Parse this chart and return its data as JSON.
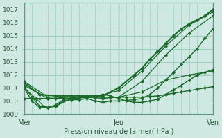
{
  "title": "",
  "xlabel": "Pression niveau de la mer( hPa )",
  "ylabel": "",
  "background_color": "#cfe8e2",
  "grid_color": "#9ecfc5",
  "line_color": "#1a6b2a",
  "text_color": "#2a5a3a",
  "xlim": [
    0,
    48
  ],
  "ylim": [
    1009,
    1017.5
  ],
  "yticks": [
    1009,
    1010,
    1011,
    1012,
    1013,
    1014,
    1015,
    1016,
    1017
  ],
  "xtick_positions": [
    0,
    24,
    48
  ],
  "xtick_labels": [
    "Mer",
    "Jeu",
    "Ven"
  ],
  "series": [
    {
      "x": [
        0,
        2,
        4,
        6,
        8,
        10,
        12,
        14,
        16,
        18,
        20,
        22,
        24,
        26,
        28,
        30,
        32,
        34,
        36,
        38,
        40,
        42,
        44,
        46,
        48
      ],
      "y": [
        1011.1,
        1010.3,
        1009.6,
        1009.5,
        1009.6,
        1010.0,
        1010.1,
        1010.1,
        1010.2,
        1010.0,
        1009.9,
        1010.0,
        1010.0,
        1010.05,
        1010.1,
        1010.2,
        1010.5,
        1011.0,
        1011.6,
        1012.2,
        1012.8,
        1013.4,
        1014.0,
        1014.8,
        1015.5
      ]
    },
    {
      "x": [
        0,
        2,
        4,
        6,
        8,
        10,
        12,
        14,
        16,
        18,
        20,
        22,
        24,
        26,
        28,
        30,
        32,
        34,
        36,
        38,
        40,
        42,
        44,
        46,
        48
      ],
      "y": [
        1010.2,
        1010.2,
        1010.2,
        1010.2,
        1010.2,
        1010.3,
        1010.3,
        1010.3,
        1010.3,
        1010.3,
        1010.3,
        1010.3,
        1010.3,
        1010.3,
        1010.3,
        1010.3,
        1010.35,
        1010.4,
        1010.5,
        1010.6,
        1010.7,
        1010.8,
        1010.9,
        1011.0,
        1011.1
      ]
    },
    {
      "x": [
        0,
        6,
        12,
        18,
        24,
        30,
        36,
        42,
        48
      ],
      "y": [
        1011.5,
        1010.3,
        1010.3,
        1010.3,
        1010.3,
        1011.5,
        1013.5,
        1015.2,
        1016.5
      ]
    },
    {
      "x": [
        0,
        6,
        12,
        18,
        24,
        30,
        36,
        42,
        48
      ],
      "y": [
        1011.2,
        1010.2,
        1010.2,
        1010.3,
        1010.8,
        1012.3,
        1014.2,
        1015.8,
        1016.8
      ]
    },
    {
      "x": [
        0,
        4,
        8,
        12,
        16,
        20,
        24,
        28,
        30,
        32,
        34,
        36,
        38,
        40,
        42,
        44,
        46,
        48
      ],
      "y": [
        1011.4,
        1010.5,
        1010.4,
        1010.4,
        1010.4,
        1010.4,
        1011.0,
        1012.0,
        1012.5,
        1013.2,
        1013.8,
        1014.4,
        1015.0,
        1015.5,
        1015.9,
        1016.2,
        1016.5,
        1017.0
      ]
    },
    {
      "x": [
        0,
        2,
        4,
        6,
        8,
        10,
        12,
        14,
        16,
        18,
        20,
        22,
        24,
        26,
        28,
        30,
        32,
        34,
        36,
        38,
        40,
        42,
        44,
        46,
        48
      ],
      "y": [
        1011.0,
        1010.0,
        1009.5,
        1009.5,
        1009.7,
        1010.1,
        1010.2,
        1010.3,
        1010.4,
        1010.4,
        1010.5,
        1010.4,
        1010.2,
        1010.0,
        1009.9,
        1009.9,
        1010.0,
        1010.15,
        1010.5,
        1010.85,
        1011.2,
        1011.6,
        1012.0,
        1012.2,
        1012.4
      ]
    },
    {
      "x": [
        0,
        3,
        5,
        8,
        12,
        16,
        20,
        24,
        30,
        36,
        42,
        48
      ],
      "y": [
        1011.0,
        1010.2,
        1009.6,
        1009.6,
        1010.2,
        1010.3,
        1010.2,
        1010.3,
        1010.7,
        1011.6,
        1012.0,
        1012.3
      ]
    }
  ]
}
